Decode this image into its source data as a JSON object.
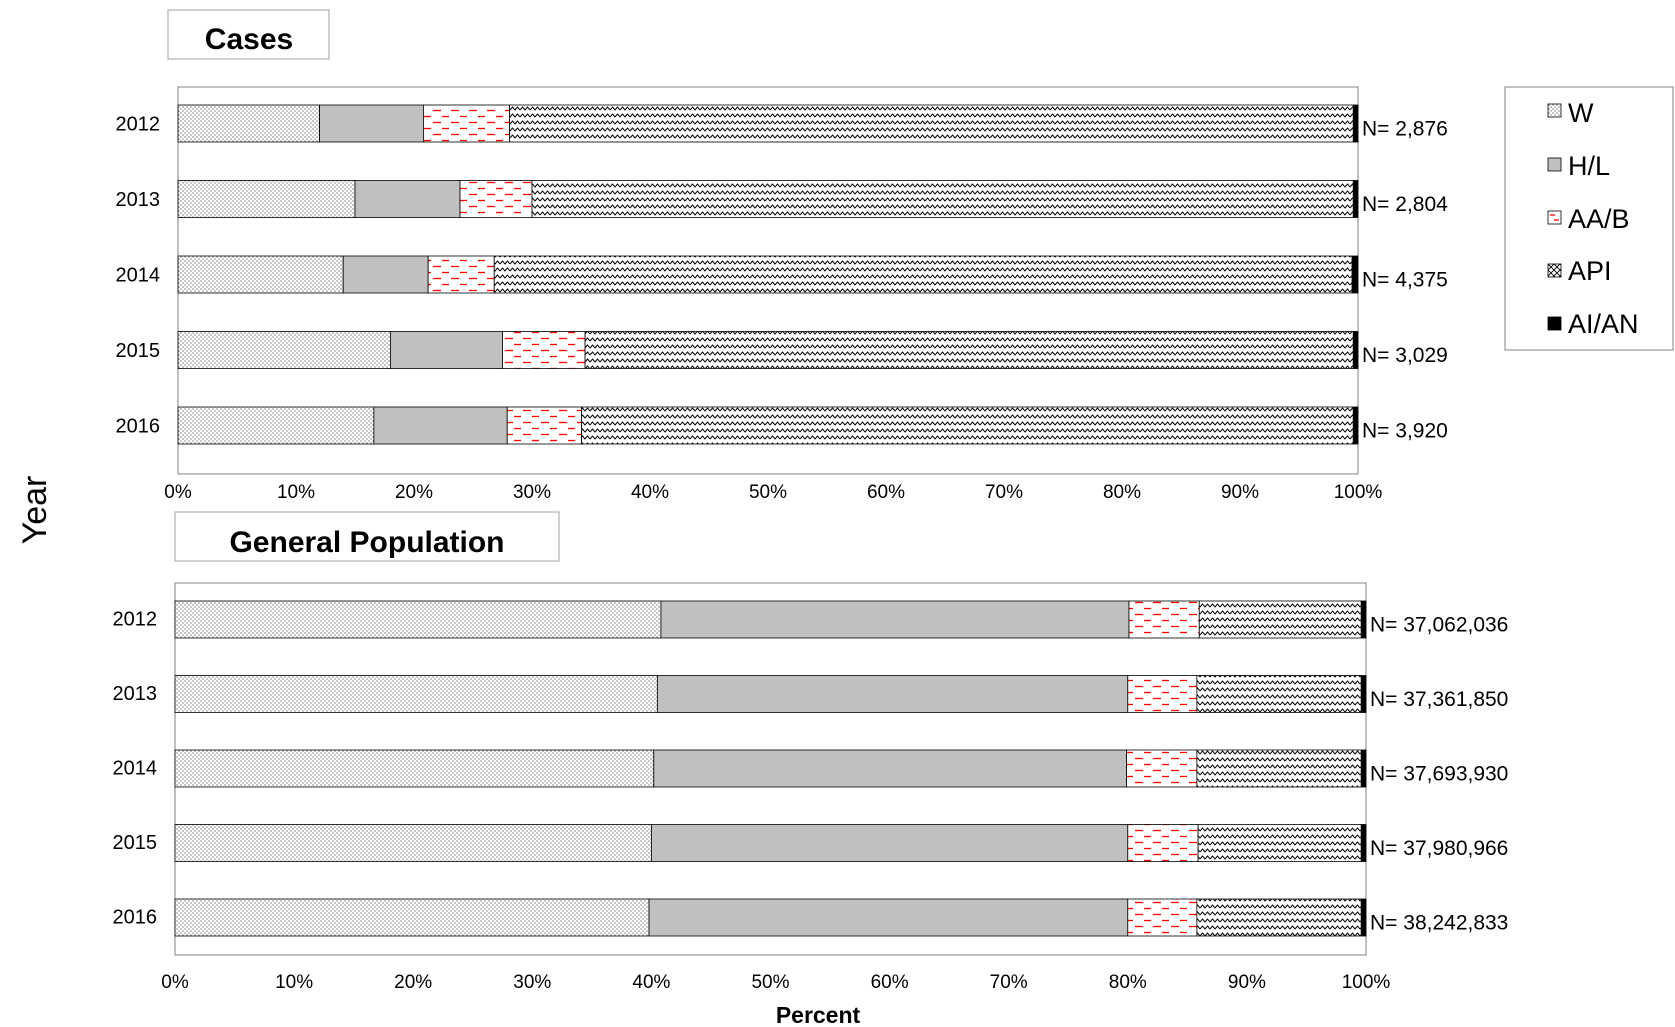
{
  "chart_data": [
    {
      "type": "bar",
      "orientation": "horizontal",
      "stacked": "percent",
      "title": "Cases",
      "categories": [
        "2012",
        "2013",
        "2014",
        "2015",
        "2016"
      ],
      "series": [
        {
          "name": "W",
          "values": [
            12.0,
            15.0,
            14.0,
            18.0,
            16.6
          ]
        },
        {
          "name": "H/L",
          "values": [
            8.8,
            8.9,
            7.2,
            9.5,
            11.3
          ]
        },
        {
          "name": "AA/B",
          "values": [
            7.3,
            6.1,
            5.6,
            7.0,
            6.3
          ]
        },
        {
          "name": "API",
          "values": [
            71.5,
            69.6,
            72.7,
            65.1,
            65.4
          ]
        },
        {
          "name": "AI/AN",
          "values": [
            0.4,
            0.4,
            0.5,
            0.4,
            0.4
          ]
        }
      ],
      "n_labels": [
        "N=  2,876",
        "N=  2,804",
        "N=  4,375",
        "N=  3,029",
        "N=  3,920"
      ],
      "xlim": [
        0,
        100
      ],
      "xticks": [
        "0%",
        "10%",
        "20%",
        "30%",
        "40%",
        "50%",
        "60%",
        "70%",
        "80%",
        "90%",
        "100%"
      ],
      "grid": false
    },
    {
      "type": "bar",
      "orientation": "horizontal",
      "stacked": "percent",
      "title": "General Population",
      "categories": [
        "2012",
        "2013",
        "2014",
        "2015",
        "2016"
      ],
      "series": [
        {
          "name": "W",
          "values": [
            40.8,
            40.5,
            40.2,
            40.0,
            39.8
          ]
        },
        {
          "name": "H/L",
          "values": [
            39.3,
            39.5,
            39.7,
            40.0,
            40.2
          ]
        },
        {
          "name": "AA/B",
          "values": [
            5.9,
            5.8,
            5.9,
            5.9,
            5.8
          ]
        },
        {
          "name": "API",
          "values": [
            13.6,
            13.8,
            13.8,
            13.7,
            13.8
          ]
        },
        {
          "name": "AI/AN",
          "values": [
            0.4,
            0.4,
            0.4,
            0.4,
            0.4
          ]
        }
      ],
      "n_labels": [
        "N=  37,062,036",
        "N=  37,361,850",
        "N=  37,693,930",
        "N=  37,980,966",
        "N=  38,242,833"
      ],
      "xlim": [
        0,
        100
      ],
      "xticks": [
        "0%",
        "10%",
        "20%",
        "30%",
        "40%",
        "50%",
        "60%",
        "70%",
        "80%",
        "90%",
        "100%"
      ],
      "grid": false
    }
  ],
  "ylabel": "Year",
  "xlabel": "Percent",
  "legend": {
    "placement": "right",
    "entries": [
      "W",
      "H/L",
      "AA/B",
      "API",
      "AI/AN"
    ]
  },
  "colors": {
    "W_dots": "#7a7a7a",
    "H_L_fill": "#c0c0c0",
    "AA_B_dash": "#ff0000",
    "API_wave": "#000000",
    "AI_AN_fill": "#000000",
    "axis": "#808080"
  }
}
